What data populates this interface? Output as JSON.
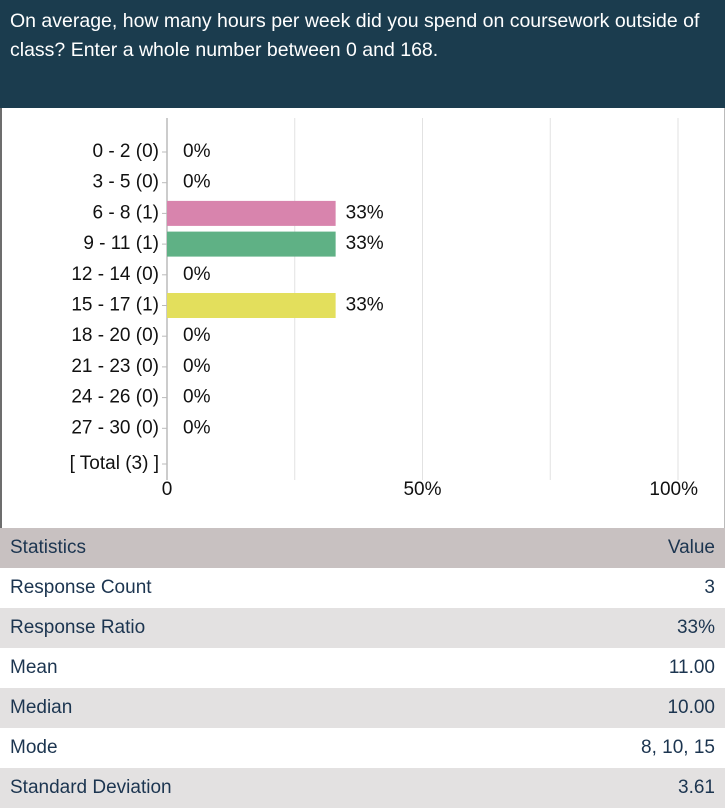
{
  "header": {
    "title": "On average, how many hours per week did you spend on coursework outside of class? Enter a whole number between 0 and 168."
  },
  "chart_data": {
    "type": "hbar",
    "categories": [
      "0 - 2 (0)",
      "3 - 5 (0)",
      "6 - 8 (1)",
      "9 - 11 (1)",
      "12 - 14 (0)",
      "15 - 17 (1)",
      "18 - 20 (0)",
      "21 - 23 (0)",
      "24 - 26 (0)",
      "27 - 30 (0)",
      "[ Total (3) ]"
    ],
    "values": [
      0,
      0,
      33,
      33,
      0,
      33,
      0,
      0,
      0,
      0,
      null
    ],
    "value_labels": [
      "0%",
      "0%",
      "33%",
      "33%",
      "0%",
      "33%",
      "0%",
      "0%",
      "0%",
      "0%",
      null
    ],
    "colors": [
      null,
      null,
      "#d884ad",
      "#5fb185",
      "#e3df5c",
      "#e3df5c",
      null,
      null,
      null,
      null,
      null
    ],
    "xlim": [
      0,
      100
    ],
    "xticks": [
      0,
      {
        "value": 50,
        "label": "50%"
      },
      {
        "value": 100,
        "label": "100%"
      }
    ],
    "minor_xticks": [
      25,
      75
    ],
    "grid": true
  },
  "table": {
    "header": [
      "Statistics",
      "Value"
    ],
    "rows": [
      [
        "Response Count",
        "3"
      ],
      [
        "Response Ratio",
        "33%"
      ],
      [
        "Mean",
        "11.00"
      ],
      [
        "Median",
        "10.00"
      ],
      [
        "Mode",
        "8, 10, 15"
      ],
      [
        "Standard Deviation",
        "3.61"
      ]
    ]
  }
}
